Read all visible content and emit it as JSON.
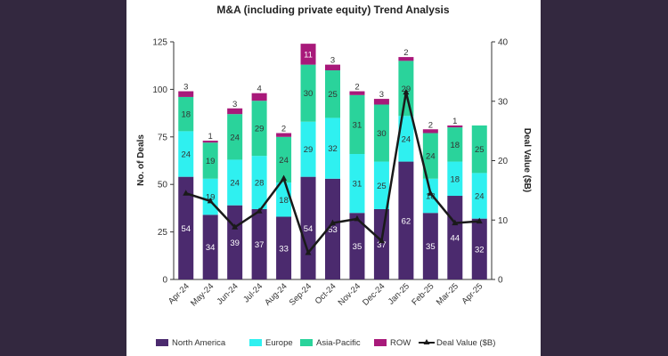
{
  "chart_data": {
    "type": "bar",
    "stacked": true,
    "title": "M&A (including private equity) Trend Analysis",
    "ylabel": "No. of Deals",
    "y2label": "Deal Value ($B)",
    "ylim": [
      0,
      125
    ],
    "yticks": [
      "0",
      "25",
      "50",
      "75",
      "100",
      "125"
    ],
    "y2lim": [
      0,
      40
    ],
    "y2ticks": [
      "0",
      "10",
      "20",
      "30",
      "40"
    ],
    "grid": false,
    "legend_position": "bottom",
    "categories": [
      "Apr-24",
      "May-24",
      "Jun-24",
      "Jul-24",
      "Aug-24",
      "Sep-24",
      "Oct-24",
      "Nov-24",
      "Dec-24",
      "Jan-25",
      "Feb-25",
      "Mar-25",
      "Apr-25"
    ],
    "series": [
      {
        "name": "North America",
        "color": "#4b2a6e",
        "labelColor": "#ffffff",
        "values": [
          54,
          34,
          39,
          37,
          33,
          54,
          53,
          35,
          37,
          62,
          35,
          44,
          32
        ]
      },
      {
        "name": "Europe",
        "color": "#2ff0f0",
        "labelColor": "#333333",
        "values": [
          24,
          19,
          24,
          28,
          18,
          29,
          32,
          31,
          25,
          24,
          18,
          18,
          24
        ]
      },
      {
        "name": "Asia-Pacific",
        "color": "#2ad39b",
        "labelColor": "#333333",
        "values": [
          18,
          19,
          24,
          29,
          24,
          30,
          25,
          31,
          30,
          29,
          24,
          18,
          25
        ]
      },
      {
        "name": "ROW",
        "color": "#a8197a",
        "labelColor": "#ffffff",
        "values": [
          3,
          1,
          3,
          4,
          2,
          11,
          3,
          2,
          3,
          2,
          2,
          1,
          0
        ]
      }
    ],
    "line": {
      "name": "Deal Value ($B)",
      "color": "#1a1a1a",
      "axis": "right",
      "values": [
        14.5,
        13.2,
        8.8,
        11.5,
        17,
        4.5,
        9.5,
        10.2,
        6.5,
        31.5,
        14.5,
        9.5,
        9.8
      ]
    }
  }
}
